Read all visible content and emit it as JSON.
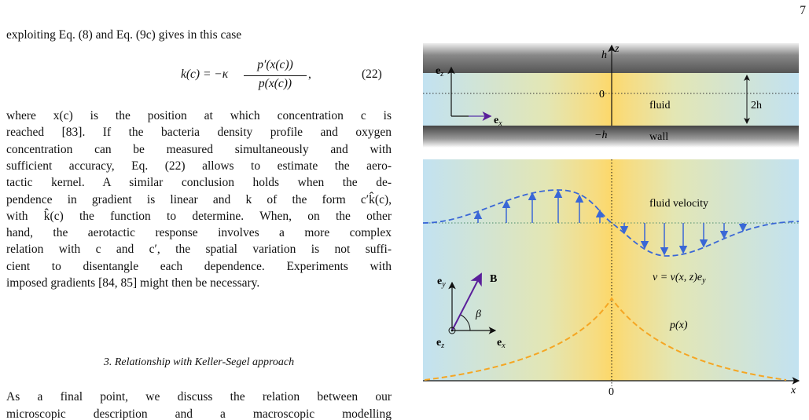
{
  "page_number": "7",
  "text_before": "exploiting Eq. (8) and Eq. (9c) gives in this case",
  "equation": {
    "lhs": "k(c) = −κ",
    "numerator": "p′(x(c))",
    "denominator": "p(x(c))",
    "comma": ",",
    "number": "(22)"
  },
  "paragraph": [
    "where x(c) is the position at which concentration c is",
    "reached [83]. If the bacteria density profile and oxygen",
    "concentration can be measured simultaneously and with",
    "sufficient accuracy, Eq. (22) allows to estimate the aero-",
    "tactic kernel. A similar conclusion holds when the de-",
    "pendence in gradient is linear and k of the form c′k̂(c),",
    "with k̂(c) the function to determine. When, on the other",
    "hand, the aerotactic response involves a more complex",
    "relation with c and c′, the spatial variation is not suffi-",
    "cient to disentangle each dependence. Experiments with",
    "imposed gradients [84, 85] might then be necessary."
  ],
  "section_heading": "3.   Relationship with Keller-Segel approach",
  "paragraph2": [
    "As a final point, we discuss the relation between our",
    "microscopic description and a macroscopic modelling"
  ],
  "figure": {
    "top_panel": {
      "h": "h",
      "z": "z",
      "zero": "0",
      "minus_h": "−h",
      "two_h": "2h",
      "fluid": "fluid",
      "wall": "wall",
      "e_z": {
        "base": "e",
        "sub": "z"
      },
      "e_x": {
        "base": "e",
        "sub": "x"
      }
    },
    "bottom_panel": {
      "fluid_velocity": "fluid velocity",
      "velocity_eq": {
        "base": "v = v(x, z)e",
        "sub": "y"
      },
      "B": "B",
      "beta": "β",
      "p": "p(x)",
      "e_y": {
        "base": "e",
        "sub": "y"
      },
      "e_z": {
        "base": "e",
        "sub": "z"
      },
      "e_x": {
        "base": "e",
        "sub": "x"
      },
      "zero": "0",
      "x": "x"
    }
  }
}
